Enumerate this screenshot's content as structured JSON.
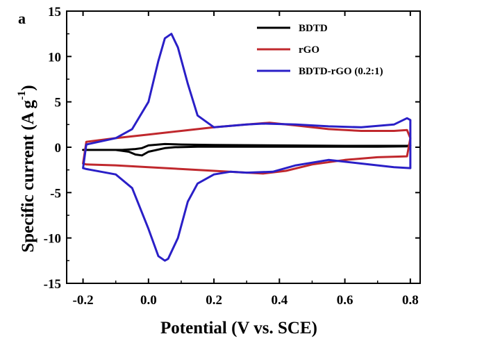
{
  "chart_data": {
    "type": "line",
    "panel_label": "a",
    "xlabel": "Potential (V vs. SCE)",
    "ylabel_main": "Specific current (A g",
    "ylabel_sup": "-1",
    "ylabel_close": ")",
    "xlim": [
      -0.25,
      0.83
    ],
    "ylim": [
      -15,
      15
    ],
    "xticks": [
      -0.2,
      0.0,
      0.2,
      0.4,
      0.6,
      0.8
    ],
    "xtick_labels": [
      "-0.2",
      "0.0",
      "0.2",
      "0.4",
      "0.6",
      "0.8"
    ],
    "yticks": [
      -15,
      -10,
      -5,
      0,
      5,
      10,
      15
    ],
    "ytick_labels": [
      "-15",
      "-10",
      "-5",
      "0",
      "5",
      "10",
      "15"
    ],
    "grid": false,
    "legend_position": "top-right",
    "series": [
      {
        "name": "BDTD",
        "color": "#000000",
        "x": [
          -0.2,
          -0.1,
          -0.06,
          -0.04,
          -0.02,
          0.0,
          0.05,
          0.08,
          0.15,
          0.3,
          0.5,
          0.7,
          0.79,
          0.8,
          0.79,
          0.6,
          0.4,
          0.2,
          0.1,
          0.05,
          0.0,
          -0.02,
          -0.04,
          -0.08,
          -0.15,
          -0.2
        ],
        "y": [
          -0.3,
          -0.3,
          -0.5,
          -0.8,
          -0.9,
          -0.5,
          -0.1,
          0.0,
          0.05,
          0.05,
          0.05,
          0.05,
          0.1,
          0.2,
          0.15,
          0.15,
          0.2,
          0.25,
          0.3,
          0.35,
          0.2,
          -0.1,
          -0.2,
          -0.3,
          -0.3,
          -0.3
        ]
      },
      {
        "name": "rGO",
        "color": "#c0282d",
        "x": [
          -0.2,
          -0.19,
          -0.1,
          0.0,
          0.1,
          0.2,
          0.3,
          0.37,
          0.45,
          0.55,
          0.65,
          0.75,
          0.79,
          0.8,
          0.79,
          0.7,
          0.6,
          0.5,
          0.42,
          0.35,
          0.3,
          0.2,
          0.1,
          0.0,
          -0.1,
          -0.19,
          -0.2
        ],
        "y": [
          -1.8,
          0.6,
          1.0,
          1.4,
          1.8,
          2.2,
          2.5,
          2.7,
          2.4,
          2.0,
          1.8,
          1.8,
          1.9,
          1.0,
          -1.0,
          -1.1,
          -1.4,
          -1.9,
          -2.6,
          -2.9,
          -2.8,
          -2.6,
          -2.4,
          -2.2,
          -2.0,
          -1.9,
          -1.8
        ]
      },
      {
        "name": "BDTD-rGO (0.2:1)",
        "color": "#2a1fc7",
        "x": [
          -0.2,
          -0.19,
          -0.1,
          -0.05,
          0.0,
          0.03,
          0.05,
          0.07,
          0.09,
          0.12,
          0.15,
          0.2,
          0.3,
          0.35,
          0.45,
          0.55,
          0.65,
          0.75,
          0.79,
          0.8,
          0.8,
          0.75,
          0.65,
          0.55,
          0.45,
          0.38,
          0.3,
          0.25,
          0.2,
          0.15,
          0.12,
          0.09,
          0.06,
          0.05,
          0.03,
          0.0,
          -0.05,
          -0.1,
          -0.19,
          -0.2
        ],
        "y": [
          -2.3,
          0.3,
          1.0,
          2.0,
          5.0,
          9.5,
          12.0,
          12.5,
          11.0,
          7.0,
          3.5,
          2.2,
          2.5,
          2.6,
          2.5,
          2.3,
          2.2,
          2.5,
          3.2,
          3.0,
          -2.3,
          -2.2,
          -1.8,
          -1.4,
          -2.0,
          -2.7,
          -2.8,
          -2.7,
          -3.0,
          -4.0,
          -6.0,
          -10.0,
          -12.3,
          -12.5,
          -12.0,
          -9.0,
          -4.5,
          -3.0,
          -2.4,
          -2.3
        ]
      }
    ]
  }
}
